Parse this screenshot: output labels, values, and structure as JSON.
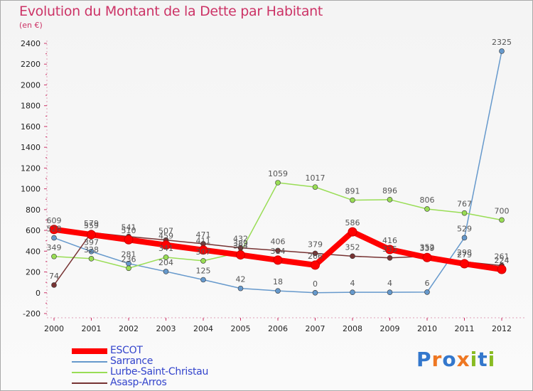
{
  "title": "Evolution du Montant de la Dette par Habitant",
  "subtitle": "(en €)",
  "logo_text": "Proxiti",
  "chart_data": {
    "type": "line",
    "title": "Evolution du Montant de la Dette par Habitant",
    "subtitle": "(en €)",
    "x": [
      "2000",
      "2001",
      "2002",
      "2003",
      "2004",
      "2005",
      "2006",
      "2007",
      "2008",
      "2009",
      "2010",
      "2011",
      "2012"
    ],
    "y_ticks": [
      -200,
      0,
      200,
      400,
      600,
      800,
      1000,
      1200,
      1400,
      1600,
      1800,
      2000,
      2200,
      2400
    ],
    "ylim": [
      -200,
      2400
    ],
    "grid": false,
    "legend_position": "bottom-left",
    "series": [
      {
        "name": "ESCOT",
        "color": "#ff0000",
        "values": [
          609,
          559,
          510,
          459,
          411,
          364,
          314,
          266,
          586,
          416,
          339,
          279,
          224
        ]
      },
      {
        "name": "Sarrance",
        "color": "#6699cc",
        "values": [
          528,
          397,
          281,
          204,
          125,
          42,
          18,
          0,
          4,
          4,
          6,
          529,
          2325
        ]
      },
      {
        "name": "Lurbe-Saint-Christau",
        "color": "#99dd55",
        "values": [
          349,
          328,
          236,
          341,
          307,
          389,
          1059,
          1017,
          891,
          896,
          806,
          767,
          700
        ]
      },
      {
        "name": "Asasp-Arros",
        "color": "#773333",
        "values": [
          74,
          579,
          541,
          507,
          471,
          432,
          406,
          379,
          352,
          335,
          352,
          298,
          261
        ]
      }
    ]
  }
}
